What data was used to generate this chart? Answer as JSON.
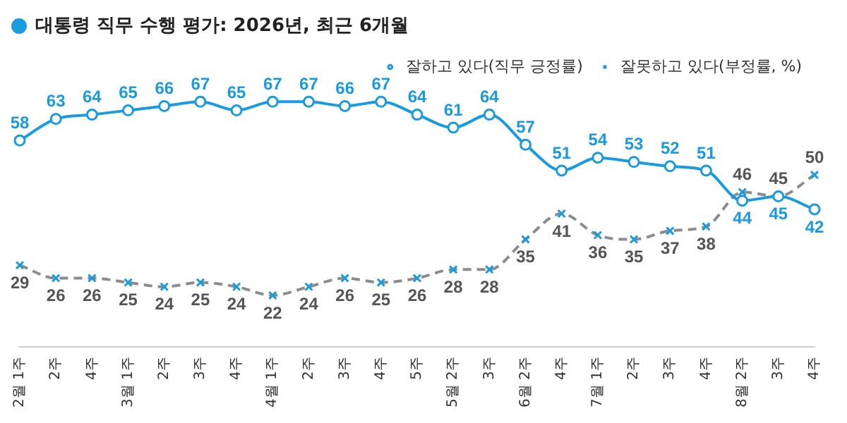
{
  "chart_data": {
    "type": "line",
    "title": "대통령 직무 수행 평가: 2026년, 최근 6개월",
    "categories": [
      "2월 1주",
      "2주",
      "4주",
      "3월 1주",
      "2주",
      "3주",
      "4주",
      "4월 1주",
      "2주",
      "3주",
      "4주",
      "5주",
      "5월 2주",
      "3주",
      "6월 2주",
      "4주",
      "7월 1주",
      "2주",
      "3주",
      "4주",
      "8월 2주",
      "3주",
      "4주"
    ],
    "series": [
      {
        "name": "잘하고 있다(직무 긍정률)",
        "color": "#1a9be0",
        "marker": "circle",
        "line_style": "solid",
        "values": [
          58,
          63,
          64,
          65,
          66,
          67,
          65,
          67,
          67,
          66,
          67,
          64,
          61,
          64,
          57,
          51,
          54,
          53,
          52,
          51,
          44,
          45,
          42
        ]
      },
      {
        "name": "잘못하고 있다(부정률, %)",
        "color": "#8c8c8c",
        "marker": "cross",
        "line_style": "dashed",
        "values": [
          29,
          26,
          26,
          25,
          24,
          25,
          24,
          22,
          24,
          26,
          25,
          26,
          28,
          28,
          35,
          41,
          36,
          35,
          37,
          38,
          46,
          45,
          50
        ]
      }
    ],
    "data_labels": true,
    "legend": "top right",
    "grid": false
  }
}
